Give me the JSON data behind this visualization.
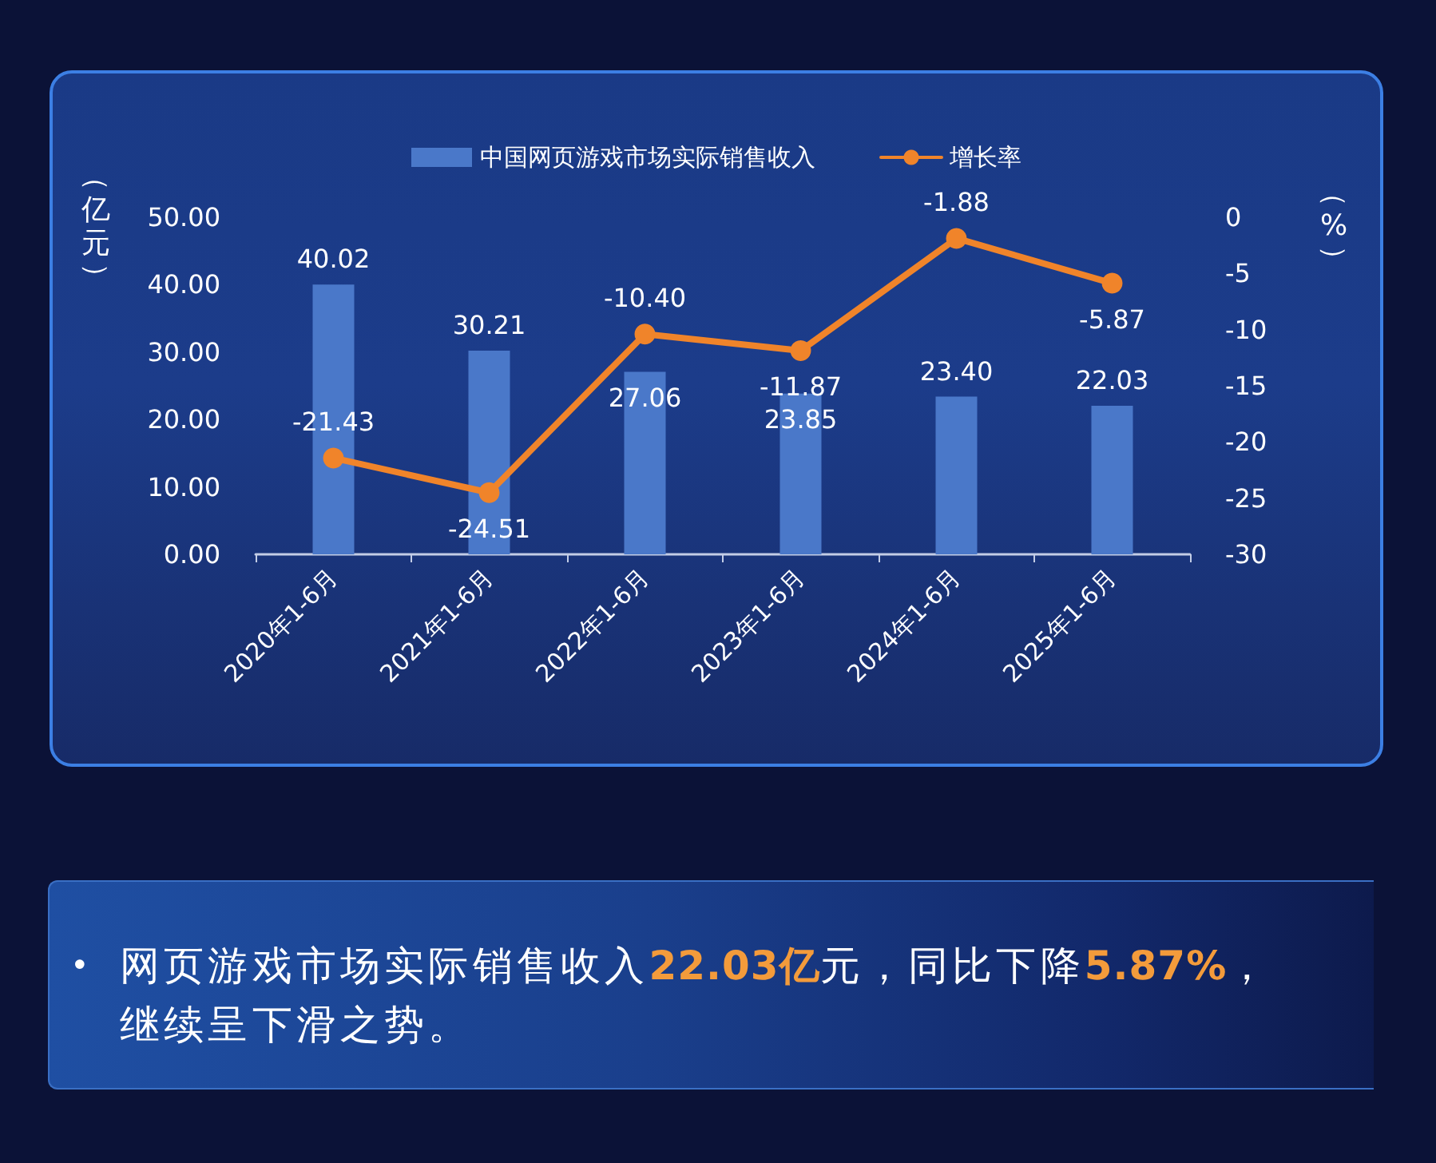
{
  "chart_data": {
    "type": "bar",
    "categories": [
      "2020年1-6月",
      "2021年1-6月",
      "2022年1-6月",
      "2023年1-6月",
      "2024年1-6月",
      "2025年1-6月"
    ],
    "ylabel": "（亿元）",
    "y2label": "（%）",
    "series": [
      {
        "name": "中国网页游戏市场实际销售收入",
        "color": "#4a78c9",
        "values": [
          40.02,
          30.21,
          27.06,
          23.85,
          23.4,
          22.03
        ],
        "value_labels": [
          "40.02",
          "30.21",
          "27.06",
          "23.85",
          "23.40",
          "22.03"
        ]
      },
      {
        "name": "增长率",
        "type": "line",
        "axis": "y2",
        "color": "#f0842a",
        "values": [
          -21.43,
          -24.51,
          -10.4,
          -11.87,
          -1.88,
          -5.87
        ],
        "value_labels": [
          "-21.43",
          "-24.51",
          "-10.40",
          "-11.87",
          "-1.88",
          "-5.87"
        ]
      }
    ],
    "ylim": [
      0,
      50
    ],
    "yticks": [
      {
        "value": 0,
        "label": "0.00"
      },
      {
        "value": 10,
        "label": "10.00"
      },
      {
        "value": 20,
        "label": "20.00"
      },
      {
        "value": 30,
        "label": "30.00"
      },
      {
        "value": 40,
        "label": "40.00"
      },
      {
        "value": 50,
        "label": "50.00"
      }
    ],
    "y2lim": [
      -30,
      0
    ],
    "y2ticks": [
      0,
      -5,
      -10,
      -15,
      -20,
      -25,
      -30
    ],
    "legend": "top",
    "grid": false,
    "marker": "circle",
    "line_style": "solid",
    "annotations": [
      "• 网页游戏市场实际销售收入22.03亿元，同比下降5.87%，继续呈下滑之势。"
    ]
  }
}
